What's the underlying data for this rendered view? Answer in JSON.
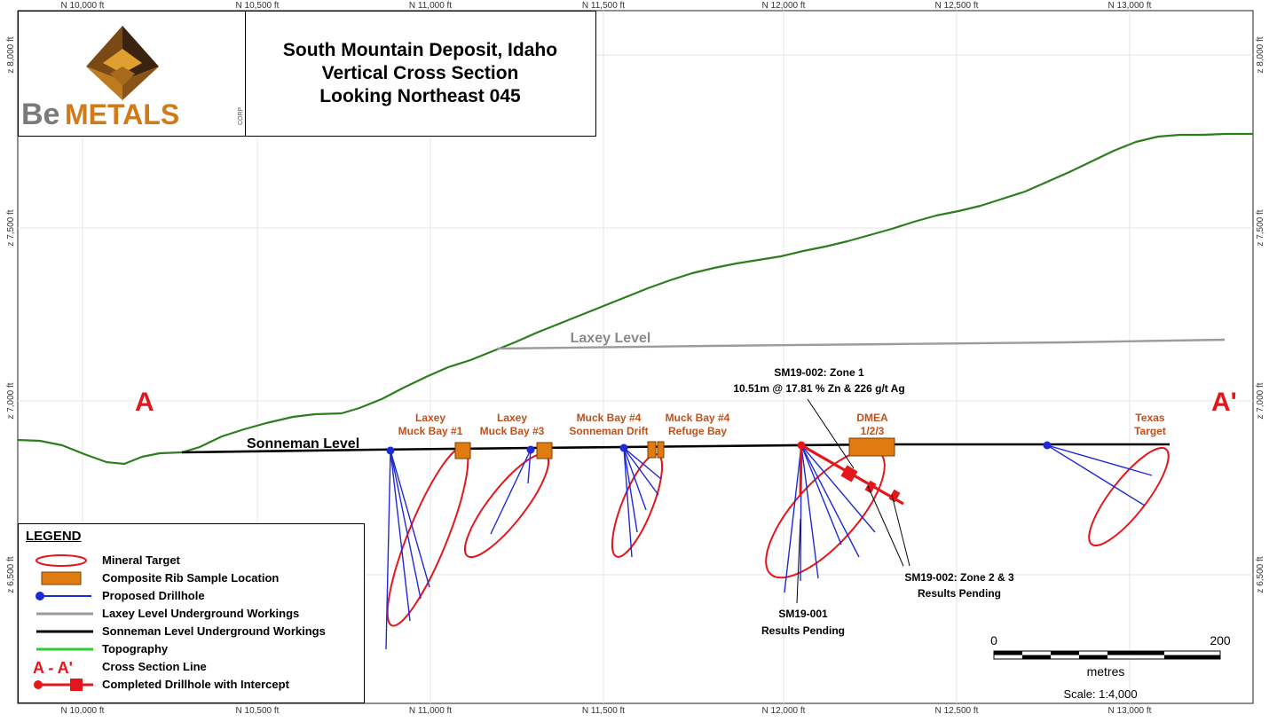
{
  "grid": {
    "easting_labels": [
      "N 10,000 ft",
      "N 10,500 ft",
      "N 11,000 ft",
      "N 11,500 ft",
      "N 12,000 ft",
      "N 12,500 ft",
      "N 13,000 ft"
    ],
    "elevation_labels": [
      "z 8,000 ft",
      "z 7,500 ft",
      "z 7,000 ft",
      "z 6,500 ft"
    ]
  },
  "logo": {
    "wordmark_be": "Be",
    "wordmark_metals": "METALS",
    "wordmark_corp": "CORP"
  },
  "title": {
    "line1": "South Mountain Deposit, Idaho",
    "line2": "Vertical Cross Section",
    "line3": "Looking Northeast 045"
  },
  "section": {
    "start_label": "A",
    "end_label": "A'"
  },
  "levels": {
    "sonneman": "Sonneman Level",
    "laxey": "Laxey Level"
  },
  "sample_locations": [
    {
      "line1": "Laxey",
      "line2": "Muck Bay #1"
    },
    {
      "line1": "Laxey",
      "line2": "Muck Bay #3"
    },
    {
      "line1": "Muck Bay #4",
      "line2": "Sonneman Drift"
    },
    {
      "line1": "Muck Bay #4",
      "line2": "Refuge Bay"
    },
    {
      "line1": "DMEA",
      "line2": "1/2/3"
    },
    {
      "line1": "Texas",
      "line2": "Target"
    }
  ],
  "annotations": {
    "zone1_title": "SM19-002: Zone 1",
    "zone1_result": "10.51m @ 17.81 % Zn & 226 g/t Ag",
    "zone23_title": "SM19-002: Zone 2 & 3",
    "zone23_status": "Results Pending",
    "sm19_001_title": "SM19-001",
    "sm19_001_status": "Results Pending"
  },
  "scale": {
    "left_value": "0",
    "right_value": "200",
    "unit": "metres",
    "ratio_text": "Scale: 1:4,000"
  },
  "legend": {
    "title": "LEGEND",
    "items": [
      {
        "symbol": "ellipse",
        "label": "Mineral Target"
      },
      {
        "symbol": "box",
        "label": "Composite Rib Sample Location"
      },
      {
        "symbol": "proposed",
        "label": "Proposed Drillhole"
      },
      {
        "symbol": "laxey",
        "label": "Laxey Level Underground Workings"
      },
      {
        "symbol": "sonneman",
        "label": "Sonneman Level Underground Workings"
      },
      {
        "symbol": "topo",
        "label": "Topography"
      },
      {
        "symbol": "section",
        "label": "Cross Section Line",
        "text": "A - A'"
      },
      {
        "symbol": "completed",
        "label": "Completed Drillhole with Intercept"
      }
    ]
  },
  "colors": {
    "topography": "#2e7d1f",
    "laxey": "#9b9b9b",
    "sonneman": "#000000",
    "proposed_drillhole": "#1f2ad6",
    "completed_drillhole": "#e3161b",
    "target": "#e3161b",
    "sample_box": "#e07b12",
    "sample_label": "#c0501a",
    "grid": "#e6e6e6"
  }
}
